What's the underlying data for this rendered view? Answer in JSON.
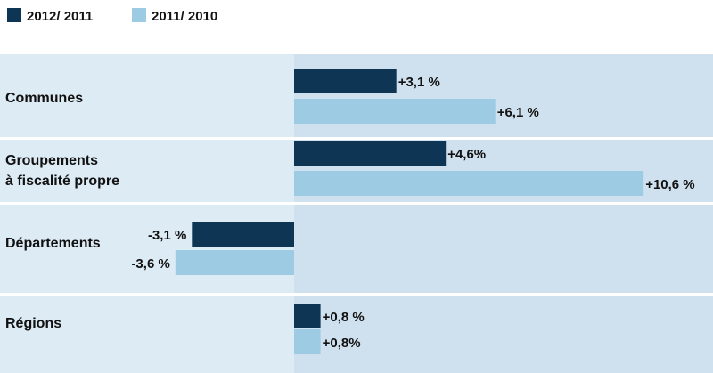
{
  "chart_data": {
    "type": "bar",
    "orientation": "horizontal",
    "categories": [
      [
        "Communes"
      ],
      [
        "Groupements",
        "à fiscalité propre"
      ],
      [
        "Départements"
      ],
      [
        "Régions"
      ]
    ],
    "series": [
      {
        "name": "2012/ 2011",
        "values": [
          3.1,
          4.6,
          -3.1,
          0.8
        ],
        "labels": [
          "+3,1 %",
          "+4,6%",
          "-3,1 %",
          "+0,8 %"
        ]
      },
      {
        "name": "2011/ 2010",
        "values": [
          6.1,
          10.6,
          -3.6,
          0.8
        ],
        "labels": [
          "+6,1 %",
          "+10,6 %",
          "-3,6 %",
          "+0,8%"
        ]
      }
    ],
    "xlim": [
      -7.0,
      11.2
    ],
    "legend": "top-left"
  },
  "colors": {
    "series_dark": "#0e3554",
    "series_light": "#9ecbe4",
    "band_light": "#ddebf5",
    "band_dark": "#cfe0ee",
    "divider": "#ffffff"
  }
}
